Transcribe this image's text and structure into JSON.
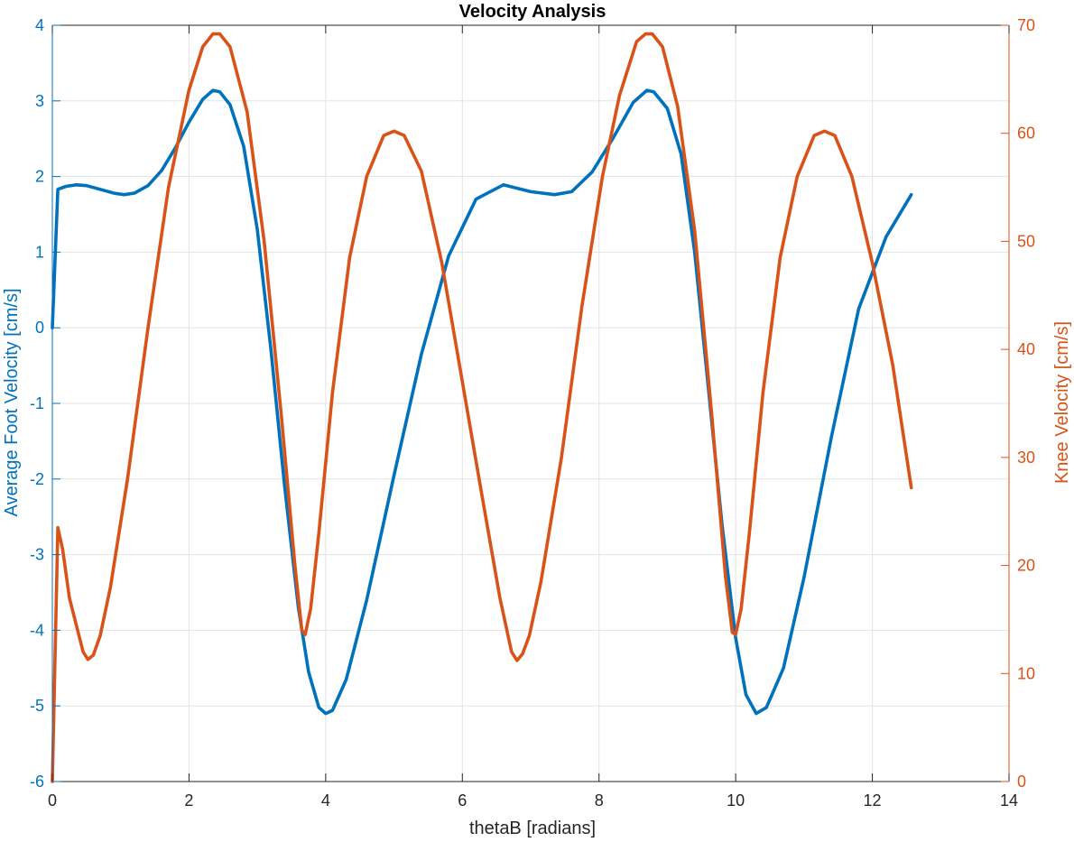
{
  "chart_data": {
    "type": "line",
    "title": "Velocity Analysis",
    "xlabel": "thetaB [radians]",
    "ylabel_left": "Average Foot Velocity [cm/s]",
    "ylabel_right": "Knee Velocity [cm/s]",
    "xlim": [
      0,
      14
    ],
    "ylim_left": [
      -6,
      4
    ],
    "ylim_right": [
      0,
      70
    ],
    "x_ticks": [
      0,
      2,
      4,
      6,
      8,
      10,
      12,
      14
    ],
    "y_ticks_left": [
      -6,
      -5,
      -4,
      -3,
      -2,
      -1,
      0,
      1,
      2,
      3,
      4
    ],
    "y_ticks_right": [
      0,
      10,
      20,
      30,
      40,
      50,
      60,
      70
    ],
    "grid": true,
    "colors": {
      "left": "#0072BD",
      "right": "#D95319",
      "grid": "#e3e3e3",
      "axis": "#262626"
    },
    "series": [
      {
        "axis": "left",
        "color": "#0072BD",
        "points": [
          [
            0.0,
            0.0
          ],
          [
            0.08,
            1.83
          ],
          [
            0.2,
            1.87
          ],
          [
            0.35,
            1.89
          ],
          [
            0.5,
            1.88
          ],
          [
            0.7,
            1.83
          ],
          [
            0.9,
            1.78
          ],
          [
            1.05,
            1.76
          ],
          [
            1.2,
            1.78
          ],
          [
            1.4,
            1.88
          ],
          [
            1.6,
            2.08
          ],
          [
            1.8,
            2.38
          ],
          [
            2.0,
            2.72
          ],
          [
            2.2,
            3.02
          ],
          [
            2.35,
            3.14
          ],
          [
            2.45,
            3.12
          ],
          [
            2.6,
            2.95
          ],
          [
            2.8,
            2.4
          ],
          [
            3.0,
            1.3
          ],
          [
            3.2,
            -0.3
          ],
          [
            3.4,
            -2.1
          ],
          [
            3.6,
            -3.7
          ],
          [
            3.75,
            -4.55
          ],
          [
            3.9,
            -5.02
          ],
          [
            4.0,
            -5.1
          ],
          [
            4.1,
            -5.06
          ],
          [
            4.3,
            -4.65
          ],
          [
            4.6,
            -3.6
          ],
          [
            5.0,
            -1.95
          ],
          [
            5.4,
            -0.35
          ],
          [
            5.8,
            0.95
          ],
          [
            6.2,
            1.7
          ],
          [
            6.6,
            1.89
          ],
          [
            7.0,
            1.8
          ],
          [
            7.35,
            1.76
          ],
          [
            7.6,
            1.8
          ],
          [
            7.9,
            2.06
          ],
          [
            8.2,
            2.5
          ],
          [
            8.5,
            2.98
          ],
          [
            8.7,
            3.14
          ],
          [
            8.8,
            3.12
          ],
          [
            9.0,
            2.9
          ],
          [
            9.2,
            2.3
          ],
          [
            9.4,
            1.0
          ],
          [
            9.6,
            -0.8
          ],
          [
            9.8,
            -2.6
          ],
          [
            10.0,
            -4.1
          ],
          [
            10.15,
            -4.85
          ],
          [
            10.3,
            -5.1
          ],
          [
            10.45,
            -5.02
          ],
          [
            10.7,
            -4.5
          ],
          [
            11.0,
            -3.3
          ],
          [
            11.4,
            -1.45
          ],
          [
            11.8,
            0.25
          ],
          [
            12.2,
            1.2
          ],
          [
            12.57,
            1.76
          ]
        ]
      },
      {
        "axis": "right",
        "color": "#D95319",
        "points": [
          [
            0.0,
            0.0
          ],
          [
            0.08,
            23.5
          ],
          [
            0.15,
            21.5
          ],
          [
            0.25,
            17.0
          ],
          [
            0.35,
            14.5
          ],
          [
            0.45,
            12.0
          ],
          [
            0.52,
            11.3
          ],
          [
            0.6,
            11.7
          ],
          [
            0.7,
            13.5
          ],
          [
            0.85,
            18.0
          ],
          [
            1.1,
            28.0
          ],
          [
            1.4,
            42.0
          ],
          [
            1.7,
            55.0
          ],
          [
            2.0,
            64.0
          ],
          [
            2.2,
            68.0
          ],
          [
            2.35,
            69.2
          ],
          [
            2.45,
            69.2
          ],
          [
            2.6,
            68.0
          ],
          [
            2.85,
            62.0
          ],
          [
            3.1,
            50.0
          ],
          [
            3.35,
            34.0
          ],
          [
            3.55,
            20.0
          ],
          [
            3.65,
            14.0
          ],
          [
            3.7,
            13.6
          ],
          [
            3.78,
            16.0
          ],
          [
            3.9,
            23.0
          ],
          [
            4.1,
            36.0
          ],
          [
            4.35,
            48.5
          ],
          [
            4.6,
            56.0
          ],
          [
            4.85,
            59.8
          ],
          [
            5.0,
            60.2
          ],
          [
            5.15,
            59.8
          ],
          [
            5.4,
            56.5
          ],
          [
            5.7,
            48.0
          ],
          [
            6.0,
            37.0
          ],
          [
            6.3,
            26.0
          ],
          [
            6.55,
            17.0
          ],
          [
            6.72,
            12.0
          ],
          [
            6.8,
            11.2
          ],
          [
            6.88,
            11.8
          ],
          [
            6.98,
            13.5
          ],
          [
            7.15,
            18.5
          ],
          [
            7.45,
            30.0
          ],
          [
            7.75,
            44.0
          ],
          [
            8.05,
            56.0
          ],
          [
            8.3,
            63.5
          ],
          [
            8.55,
            68.5
          ],
          [
            8.68,
            69.2
          ],
          [
            8.78,
            69.2
          ],
          [
            8.93,
            68.0
          ],
          [
            9.15,
            62.5
          ],
          [
            9.4,
            51.0
          ],
          [
            9.65,
            34.0
          ],
          [
            9.85,
            19.0
          ],
          [
            9.95,
            13.8
          ],
          [
            10.0,
            13.6
          ],
          [
            10.08,
            16.0
          ],
          [
            10.2,
            23.0
          ],
          [
            10.4,
            36.0
          ],
          [
            10.65,
            48.5
          ],
          [
            10.9,
            56.0
          ],
          [
            11.15,
            59.8
          ],
          [
            11.3,
            60.2
          ],
          [
            11.45,
            59.8
          ],
          [
            11.7,
            56.0
          ],
          [
            12.0,
            48.0
          ],
          [
            12.3,
            38.5
          ],
          [
            12.57,
            27.2
          ]
        ]
      }
    ]
  }
}
